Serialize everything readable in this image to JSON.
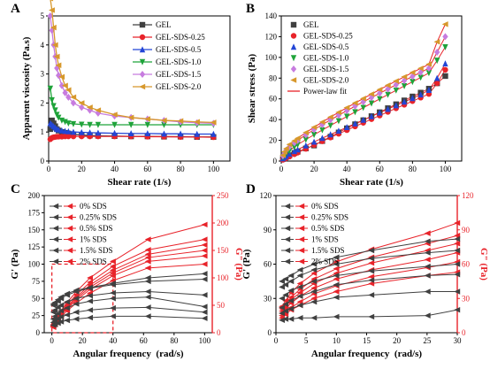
{
  "colors": {
    "GEL": "#404040",
    "GEL-SDS-0.25": "#e8232a",
    "GEL-SDS-0.5": "#2346d6",
    "GEL-SDS-1.0": "#1fa33a",
    "GEL-SDS-1.5": "#c77cdf",
    "GEL-SDS-2.0": "#d7982c",
    "fit": "#e8232a",
    "storage": "#404040",
    "loss": "#e8232a",
    "highlight_box": "#e8232a"
  },
  "chart_data": [
    {
      "panel": "A",
      "type": "line",
      "xlabel": "Shear rate (1/s)",
      "ylabel": "Apparent viscosity (Pa.s)",
      "xlim": [
        0,
        110
      ],
      "ylim": [
        0,
        5
      ],
      "xticks": [
        "0",
        "20",
        "40",
        "60",
        "80",
        "100"
      ],
      "yticks": [
        "0",
        "1",
        "2",
        "3",
        "4",
        "5"
      ],
      "legend_position": "top-right",
      "x": [
        1,
        2,
        3,
        4,
        5,
        6,
        8,
        10,
        12,
        15,
        20,
        25,
        30,
        40,
        50,
        60,
        70,
        80,
        90,
        100
      ],
      "series": [
        {
          "name": "GEL",
          "marker": "square",
          "values": [
            1.1,
            1.4,
            1.3,
            1.2,
            1.1,
            1.05,
            1.0,
            0.97,
            0.95,
            0.92,
            0.9,
            0.88,
            0.87,
            0.86,
            0.85,
            0.85,
            0.84,
            0.84,
            0.83,
            0.83
          ]
        },
        {
          "name": "GEL-SDS-0.25",
          "marker": "circle",
          "values": [
            0.75,
            0.8,
            0.82,
            0.83,
            0.84,
            0.84,
            0.84,
            0.85,
            0.85,
            0.85,
            0.85,
            0.85,
            0.85,
            0.85,
            0.85,
            0.84,
            0.84,
            0.83,
            0.83,
            0.82
          ]
        },
        {
          "name": "GEL-SDS-0.5",
          "marker": "triangle-up",
          "values": [
            1.3,
            1.25,
            1.2,
            1.15,
            1.1,
            1.08,
            1.05,
            1.03,
            1.02,
            1.0,
            0.99,
            0.98,
            0.97,
            0.96,
            0.95,
            0.95,
            0.94,
            0.94,
            0.93,
            0.93
          ]
        },
        {
          "name": "GEL-SDS-1.0",
          "marker": "triangle-down",
          "values": [
            2.5,
            2.1,
            1.9,
            1.75,
            1.6,
            1.5,
            1.4,
            1.35,
            1.3,
            1.28,
            1.26,
            1.25,
            1.25,
            1.25,
            1.25,
            1.25,
            1.25,
            1.25,
            1.25,
            1.25
          ]
        },
        {
          "name": "GEL-SDS-1.5",
          "marker": "diamond",
          "values": [
            5.0,
            4.5,
            4.0,
            3.6,
            3.2,
            2.95,
            2.6,
            2.35,
            2.2,
            2.0,
            1.85,
            1.75,
            1.65,
            1.55,
            1.5,
            1.45,
            1.4,
            1.35,
            1.32,
            1.3
          ]
        },
        {
          "name": "GEL-SDS-2.0",
          "marker": "triangle-left",
          "values": [
            5.6,
            5.2,
            4.6,
            4.0,
            3.6,
            3.3,
            2.9,
            2.6,
            2.45,
            2.2,
            2.0,
            1.85,
            1.75,
            1.6,
            1.5,
            1.45,
            1.4,
            1.38,
            1.35,
            1.33
          ]
        }
      ]
    },
    {
      "panel": "B",
      "type": "scatter",
      "xlabel": "Shear rate (1/s)",
      "ylabel": "Shear stress (Pa)",
      "xlim": [
        0,
        110
      ],
      "ylim": [
        0,
        140
      ],
      "xticks": [
        "0",
        "20",
        "40",
        "60",
        "80",
        "100"
      ],
      "yticks": [
        "0",
        "20",
        "40",
        "60",
        "80",
        "100",
        "120",
        "140"
      ],
      "legend_position": "top-left",
      "x": [
        1,
        2,
        3,
        5,
        8,
        10,
        15,
        20,
        25,
        30,
        35,
        40,
        45,
        50,
        55,
        60,
        65,
        70,
        75,
        80,
        85,
        90,
        95,
        100
      ],
      "series": [
        {
          "name": "GEL",
          "marker": "square",
          "values": [
            2.0,
            3.0,
            4.0,
            5.6,
            7.8,
            9.0,
            12.2,
            15.0,
            19.3,
            23.5,
            27.6,
            31.6,
            35.5,
            39.4,
            43.3,
            47.1,
            51.0,
            54.8,
            58.5,
            62.3,
            66.0,
            69.8,
            75.0,
            82.0
          ]
        },
        {
          "name": "GEL-SDS-0.25",
          "marker": "circle",
          "values": [
            1.2,
            2.0,
            2.8,
            4.3,
            6.6,
            8.1,
            11.8,
            15.5,
            19.1,
            22.7,
            26.3,
            29.8,
            33.4,
            36.9,
            40.4,
            43.9,
            47.4,
            50.9,
            54.3,
            57.8,
            61.2,
            64.7,
            75.0,
            88.0
          ]
        },
        {
          "name": "GEL-SDS-0.5",
          "marker": "triangle-up",
          "values": [
            2.5,
            3.8,
            5.0,
            6.9,
            9.5,
            11.1,
            14.9,
            18.5,
            22.1,
            25.6,
            29.1,
            32.6,
            36.1,
            39.6,
            43.1,
            46.6,
            50.1,
            53.6,
            57.1,
            60.6,
            64.1,
            68.5,
            80.0,
            94.0
          ]
        },
        {
          "name": "GEL-SDS-1.0",
          "marker": "triangle-down",
          "values": [
            3.5,
            5.5,
            7.3,
            10.0,
            13.6,
            15.8,
            20.7,
            25.4,
            29.9,
            34.3,
            38.7,
            43.0,
            47.3,
            51.5,
            55.7,
            59.9,
            64.1,
            68.2,
            72.4,
            76.5,
            80.6,
            85.0,
            97.0,
            110.0
          ]
        },
        {
          "name": "GEL-SDS-1.5",
          "marker": "diamond",
          "values": [
            5.0,
            8.0,
            10.5,
            13.8,
            17.5,
            19.9,
            25.3,
            30.3,
            35.1,
            39.7,
            44.2,
            48.6,
            52.9,
            57.1,
            61.3,
            65.4,
            69.5,
            73.6,
            77.6,
            81.6,
            85.6,
            89.5,
            105.0,
            120.0
          ]
        },
        {
          "name": "GEL-SDS-2.0",
          "marker": "triangle-left",
          "values": [
            5.6,
            9.0,
            12.0,
            16.0,
            19.5,
            21.9,
            27.5,
            32.6,
            37.6,
            42.4,
            47.0,
            51.5,
            56.0,
            60.3,
            64.6,
            68.9,
            73.1,
            77.2,
            81.3,
            85.4,
            89.4,
            93.4,
            115.0,
            132.0
          ]
        },
        {
          "name": "Power-law fit",
          "marker": "line",
          "values": []
        }
      ]
    },
    {
      "panel": "C",
      "type": "line",
      "xlabel": "Angular frequency  (rad/s)",
      "ylabel": "G' (Pa)",
      "ylabel_right": "G\" (Pa)",
      "xlim": [
        -5,
        105
      ],
      "ylim": [
        0,
        200
      ],
      "ylim_right": [
        0,
        250
      ],
      "xticks": [
        "0",
        "20",
        "40",
        "60",
        "80",
        "100"
      ],
      "yticks": [
        "0",
        "25",
        "50",
        "75",
        "100",
        "125",
        "150",
        "175",
        "200"
      ],
      "yticks_right": [
        "0",
        "50",
        "100",
        "150",
        "200",
        "250"
      ],
      "legend_position": "top-left",
      "legend": [
        "0% SDS",
        "0.25% SDS",
        "0.5% SDS",
        "1% SDS",
        "1.5% SDS",
        "2% SDS"
      ],
      "x": [
        1,
        2,
        4,
        6,
        10,
        16,
        25,
        40,
        63,
        100
      ],
      "series_storage": [
        {
          "name": "0% SDS",
          "values": [
            42,
            44,
            48,
            52,
            57,
            62,
            66,
            72,
            80,
            86
          ]
        },
        {
          "name": "0.25% SDS",
          "values": [
            40,
            42,
            46,
            50,
            55,
            60,
            65,
            70,
            75,
            78
          ]
        },
        {
          "name": "0.5% SDS",
          "values": [
            30,
            33,
            37,
            40,
            45,
            50,
            54,
            58,
            60,
            55
          ]
        },
        {
          "name": "1% SDS",
          "values": [
            20,
            24,
            28,
            32,
            36,
            42,
            46,
            50,
            52,
            38
          ]
        },
        {
          "name": "1.5% SDS",
          "values": [
            15,
            17,
            20,
            23,
            26,
            30,
            33,
            36,
            37,
            30
          ]
        },
        {
          "name": "2% SDS",
          "values": [
            11,
            12,
            14,
            16,
            18,
            20,
            22,
            24,
            24,
            21
          ]
        }
      ],
      "series_loss": [
        {
          "name": "0% SDS",
          "values": [
            15,
            20,
            30,
            40,
            55,
            75,
            100,
            130,
            170,
            197
          ]
        },
        {
          "name": "0.25% SDS",
          "values": [
            14,
            19,
            28,
            37,
            51,
            69,
            92,
            121,
            151,
            170
          ]
        },
        {
          "name": "0.5% SDS",
          "values": [
            13,
            18,
            26,
            35,
            48,
            65,
            87,
            114,
            143,
            160
          ]
        },
        {
          "name": "1% SDS",
          "values": [
            12,
            17,
            25,
            33,
            46,
            62,
            83,
            109,
            137,
            150
          ]
        },
        {
          "name": "1.5% SDS",
          "values": [
            11,
            16,
            24,
            32,
            44,
            59,
            79,
            104,
            130,
            140
          ]
        },
        {
          "name": "2% SDS",
          "values": [
            10,
            15,
            22,
            29,
            40,
            54,
            72,
            95,
            118,
            125
          ]
        }
      ],
      "highlight_box": {
        "x": [
          0,
          40
        ],
        "y": [
          0,
          100
        ]
      }
    },
    {
      "panel": "D",
      "type": "line",
      "xlabel": "Angular frequency  (rad/s)",
      "ylabel": "G' (Pa)",
      "ylabel_right": "G\" (Pa)",
      "xlim": [
        0,
        30
      ],
      "ylim": [
        0,
        120
      ],
      "ylim_right": [
        0,
        120
      ],
      "xticks": [
        "0",
        "5",
        "10",
        "15",
        "20",
        "25",
        "30"
      ],
      "yticks": [
        "0",
        "30",
        "60",
        "90",
        "120"
      ],
      "yticks_right": [
        "0",
        "30",
        "60",
        "90",
        "120"
      ],
      "legend_position": "top-left",
      "legend": [
        "0% SDS",
        "0.25% SDS",
        "0.5% SDS",
        "1% SDS",
        "1.5% SDS",
        "2% SDS"
      ],
      "x": [
        1.0,
        1.6,
        2.5,
        4.0,
        6.3,
        10.0,
        15.8,
        25.1,
        30.0
      ],
      "series_storage": [
        {
          "name": "0% SDS",
          "values": [
            45,
            47,
            50,
            55,
            60,
            66,
            72,
            80,
            82
          ]
        },
        {
          "name": "0.25% SDS",
          "values": [
            40,
            42,
            45,
            50,
            55,
            60,
            65,
            70,
            72
          ]
        },
        {
          "name": "0.5% SDS",
          "values": [
            30,
            33,
            37,
            40,
            45,
            50,
            54,
            58,
            60
          ]
        },
        {
          "name": "1% SDS",
          "values": [
            22,
            25,
            28,
            32,
            36,
            42,
            46,
            50,
            51
          ]
        },
        {
          "name": "1.5% SDS",
          "values": [
            17,
            19,
            21,
            24,
            27,
            31,
            33,
            36,
            36
          ]
        },
        {
          "name": "2% SDS",
          "values": [
            11,
            12,
            12,
            13,
            13,
            14,
            14,
            15,
            20
          ]
        }
      ],
      "series_loss": [
        {
          "name": "0% SDS",
          "values": [
            23,
            28,
            35,
            43,
            52,
            62,
            73,
            87,
            96
          ]
        },
        {
          "name": "0.25% SDS",
          "values": [
            21,
            25,
            31,
            38,
            47,
            56,
            66,
            78,
            85
          ]
        },
        {
          "name": "0.5% SDS",
          "values": [
            19,
            23,
            29,
            35,
            43,
            52,
            61,
            72,
            78
          ]
        },
        {
          "name": "1% SDS",
          "values": [
            17,
            21,
            26,
            32,
            39,
            47,
            55,
            64,
            70
          ]
        },
        {
          "name": "1.5% SDS",
          "values": [
            15,
            18,
            22,
            27,
            34,
            41,
            49,
            57,
            62
          ]
        },
        {
          "name": "2% SDS",
          "values": [
            13,
            16,
            20,
            24,
            30,
            36,
            43,
            50,
            53
          ]
        }
      ]
    }
  ]
}
